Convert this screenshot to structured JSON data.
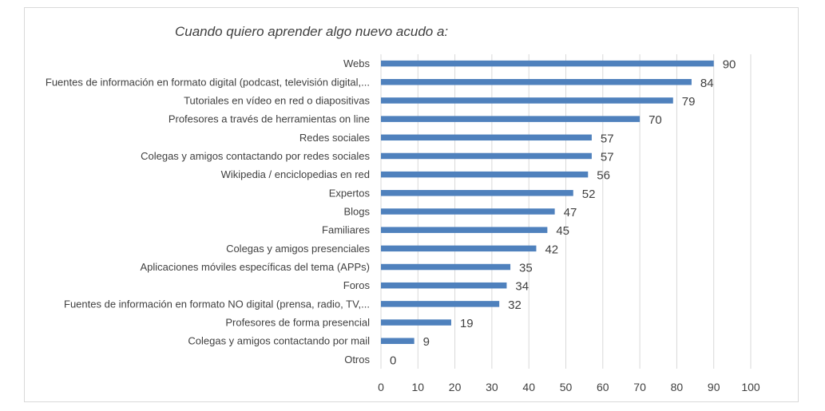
{
  "chart_data": {
    "type": "bar",
    "orientation": "horizontal",
    "title": "Cuando quiero aprender algo nuevo acudo a:",
    "categories": [
      "Webs",
      "Fuentes de información en formato digital (podcast, televisión digital,...",
      "Tutoriales en vídeo en red o diapositivas",
      "Profesores a través de herramientas on line",
      "Redes sociales",
      "Colegas y amigos contactando por redes sociales",
      "Wikipedia / enciclopedias en red",
      "Expertos",
      "Blogs",
      "Familiares",
      "Colegas y amigos presenciales",
      "Aplicaciones móviles específicas del tema (APPs)",
      "Foros",
      "Fuentes de información en formato NO digital (prensa, radio, TV,...",
      "Profesores de forma presencial",
      "Colegas y amigos contactando por mail",
      "Otros"
    ],
    "values": [
      90,
      84,
      79,
      70,
      57,
      57,
      56,
      52,
      47,
      45,
      42,
      35,
      34,
      32,
      19,
      9,
      0
    ],
    "xlim": [
      0,
      100
    ],
    "xticks": [
      0,
      10,
      20,
      30,
      40,
      50,
      60,
      70,
      80,
      90,
      100
    ],
    "grid": true,
    "bar_color": "#4f81bd",
    "grid_color": "#d9d9d9"
  }
}
